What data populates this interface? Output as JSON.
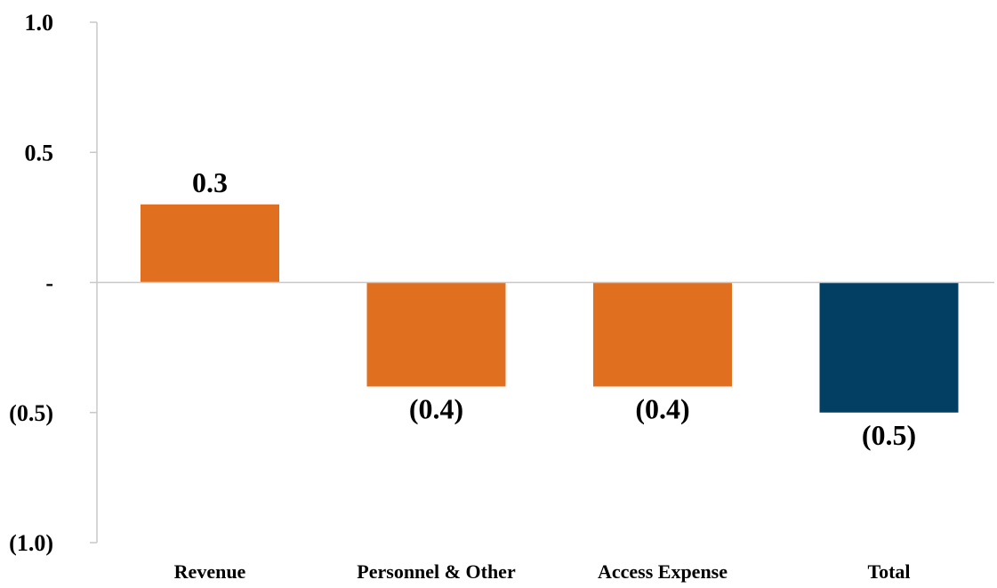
{
  "chart_data": {
    "type": "bar",
    "categories": [
      "Revenue",
      "Personnel & Other",
      "Access Expense",
      "Total"
    ],
    "values": [
      0.3,
      -0.4,
      -0.4,
      -0.5
    ],
    "data_labels": [
      "0.3",
      "(0.4)",
      "(0.4)",
      "(0.5)"
    ],
    "colors": [
      "#E07020",
      "#E07020",
      "#E07020",
      "#023F63"
    ],
    "ylim": [
      -1.0,
      1.0
    ],
    "yticks": [
      1.0,
      0.5,
      0,
      -0.5,
      -1.0
    ],
    "ytick_labels": [
      "1.0",
      "0.5",
      "-",
      "(0.5)",
      "(1.0)"
    ],
    "title": "",
    "xlabel": "",
    "ylabel": "",
    "grid": false,
    "legend": "none"
  }
}
